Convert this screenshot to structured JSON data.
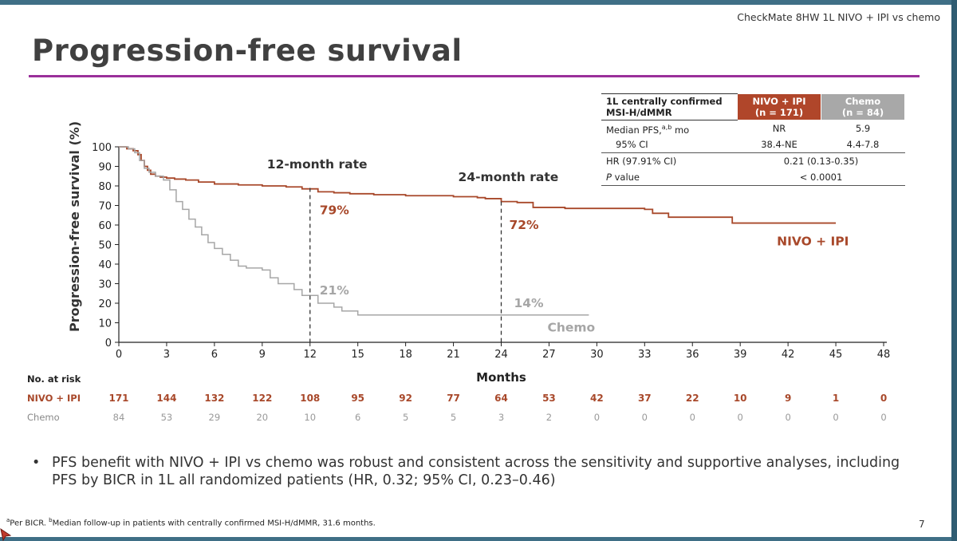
{
  "header": {
    "top_right": "CheckMate 8HW 1L NIVO + IPI vs chemo",
    "title": "Progression-free survival"
  },
  "table": {
    "h_label_1": "1L centrally confirmed",
    "h_label_2": "MSI-H/dMMR",
    "h_nivo_1": "NIVO + IPI",
    "h_nivo_2": "(n = 171)",
    "h_chemo_1": "Chemo",
    "h_chemo_2": "(n = 84)",
    "r1_label": "Median PFS,",
    "r1_sup": "a,b",
    "r1_unit": " mo",
    "r1_nivo": "NR",
    "r1_chemo": "5.9",
    "r2_label": "95% CI",
    "r2_nivo": "38.4-NE",
    "r2_chemo": "4.4-7.8",
    "r3_label": "HR (97.91% CI)",
    "r3_value": "0.21 (0.13-0.35)",
    "r4_label_i": "P",
    "r4_label": " value",
    "r4_value": "< 0.0001"
  },
  "chart_data": {
    "type": "line",
    "title": "Progression-free survival",
    "xlabel": "Months",
    "ylabel": "Progression-free survival (%)",
    "xlim": [
      0,
      48
    ],
    "ylim": [
      0,
      100
    ],
    "xticks": [
      0,
      3,
      6,
      9,
      12,
      15,
      18,
      21,
      24,
      27,
      30,
      33,
      36,
      39,
      42,
      45,
      48
    ],
    "yticks": [
      0,
      10,
      20,
      30,
      40,
      50,
      60,
      70,
      80,
      90,
      100
    ],
    "series": [
      {
        "name": "NIVO + IPI",
        "color": "#a8482a",
        "x": [
          0,
          0.5,
          0.9,
          1.2,
          1.4,
          1.6,
          1.8,
          2.0,
          2.3,
          2.6,
          3.0,
          3.5,
          4.2,
          5.0,
          6.0,
          7.5,
          9.0,
          10.5,
          11.5,
          12.5,
          13.5,
          14.5,
          16.0,
          18.0,
          21.0,
          22.5,
          23.0,
          24.0,
          25.0,
          26.0,
          28.0,
          30.0,
          33.0,
          33.5,
          34.5,
          38.5,
          45.0
        ],
        "y": [
          100,
          99,
          98,
          96,
          93,
          90,
          88,
          86,
          85,
          84.5,
          84,
          83.5,
          83,
          82,
          81,
          80.5,
          80,
          79.5,
          78.5,
          77,
          76.5,
          76,
          75.5,
          75,
          74.5,
          74,
          73.5,
          72,
          71.5,
          69,
          68.5,
          68.5,
          68,
          66,
          64,
          61,
          61
        ]
      },
      {
        "name": "Chemo",
        "color": "#a6a6a6",
        "x": [
          0,
          0.6,
          1.0,
          1.3,
          1.6,
          1.9,
          2.3,
          2.8,
          3.2,
          3.6,
          4.0,
          4.4,
          4.8,
          5.2,
          5.6,
          6.0,
          6.5,
          7.0,
          7.5,
          8.0,
          9.0,
          9.5,
          10.0,
          11.0,
          11.5,
          12.5,
          13.5,
          14.0,
          15.0,
          29.5
        ],
        "y": [
          100,
          99,
          97,
          93,
          89,
          87,
          85,
          83,
          78,
          72,
          68,
          63,
          59,
          55,
          51,
          48,
          45,
          42,
          39,
          38,
          37,
          33,
          30,
          27,
          24,
          20,
          18,
          16,
          14,
          14
        ]
      }
    ],
    "annotations": {
      "label_12": "12-month rate",
      "label_24": "24-month rate",
      "nivo_12": "79%",
      "chemo_12": "21%",
      "nivo_24": "72%",
      "chemo_24": "14%",
      "nivo_series_label": "NIVO + IPI",
      "chemo_series_label": "Chemo"
    },
    "risk": {
      "title": "No. at risk",
      "nivo_label": "NIVO + IPI",
      "nivo": [
        "171",
        "144",
        "132",
        "122",
        "108",
        "95",
        "92",
        "77",
        "64",
        "53",
        "42",
        "37",
        "22",
        "10",
        "9",
        "1",
        "0"
      ],
      "chemo_label": "Chemo",
      "chemo": [
        "84",
        "53",
        "29",
        "20",
        "10",
        "6",
        "5",
        "5",
        "3",
        "2",
        "0",
        "0",
        "0",
        "0",
        "0",
        "0",
        "0"
      ]
    }
  },
  "bullet": {
    "dot": "•",
    "text": "PFS benefit with NIVO + IPI vs chemo was robust and consistent across the sensitivity and supportive analyses, including PFS by BICR in 1L all randomized patients (HR, 0.32; 95% CI, 0.23–0.46)"
  },
  "footnote": {
    "a": "a",
    "a_text": "Per BICR. ",
    "b": "b",
    "b_text": "Median follow-up in patients with centrally confirmed MSI-H/dMMR, 31.6 months."
  },
  "page_number": "7"
}
